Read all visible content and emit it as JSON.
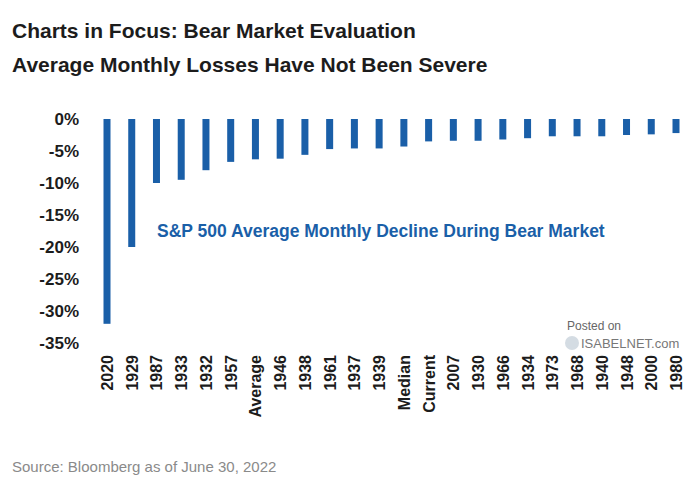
{
  "chart_data": {
    "type": "bar",
    "title": "Charts in Focus: Bear Market Evaluation",
    "subtitle": "Average Monthly Losses Have Not Been Severe",
    "annotations": [
      "S&P 500 Average Monthly Decline During Bear Market",
      "Posted on",
      "ISABELNET.com"
    ],
    "source": "Source: Bloomberg as of June 30, 2022",
    "categories": [
      "2020",
      "1929",
      "1987",
      "1933",
      "1932",
      "1957",
      "Average",
      "1946",
      "1938",
      "1961",
      "1937",
      "1939",
      "Median",
      "Current",
      "2007",
      "1930",
      "1966",
      "1934",
      "1973",
      "1968",
      "1940",
      "1948",
      "2000",
      "1980"
    ],
    "values": [
      -32,
      -20,
      -10,
      -9.5,
      -8,
      -6.7,
      -6.3,
      -6.2,
      -5.6,
      -4.7,
      -4.6,
      -4.6,
      -4.3,
      -3.5,
      -3.4,
      -3.4,
      -3.2,
      -3.0,
      -2.7,
      -2.7,
      -2.7,
      -2.5,
      -2.4,
      -2.2
    ],
    "color": "#1a5fa8",
    "ylim": [
      -35,
      0
    ],
    "yticks": [
      {
        "value": 0,
        "label": "0%"
      },
      {
        "value": -5,
        "label": "-5%"
      },
      {
        "value": -10,
        "label": "-10%"
      },
      {
        "value": -15,
        "label": "-15%"
      },
      {
        "value": -20,
        "label": "-20%"
      },
      {
        "value": -25,
        "label": "-25%"
      },
      {
        "value": -30,
        "label": "-30%"
      },
      {
        "value": -35,
        "label": "-35%"
      }
    ],
    "grid": false,
    "data_labels": false
  }
}
